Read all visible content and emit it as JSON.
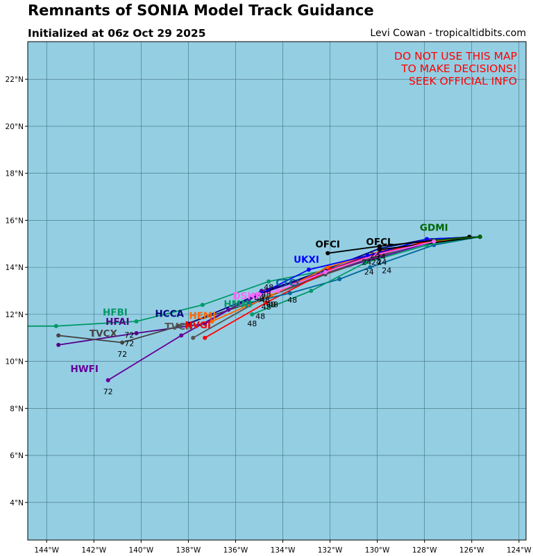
{
  "header": {
    "title": "Remnants of SONIA Model Track Guidance",
    "subtitle": "Initialized at 06z Oct 29 2025",
    "credit": "Levi Cowan - tropicaltidbits.com"
  },
  "warning": [
    "DO NOT USE THIS MAP",
    "TO MAKE DECISIONS!",
    "SEEK OFFICIAL INFO"
  ],
  "colors": {
    "ocean": "#94cee3",
    "grid": "#3f6f7a",
    "warning": "#ff0000"
  },
  "chart_data": {
    "type": "map-tracks",
    "lon_range": [
      -144.8,
      -123.7
    ],
    "lat_range": [
      2.4,
      23.6
    ],
    "lon_ticks": [
      {
        "v": -144,
        "t": "144°W"
      },
      {
        "v": -142,
        "t": "142°W"
      },
      {
        "v": -140,
        "t": "140°W"
      },
      {
        "v": -138,
        "t": "138°W"
      },
      {
        "v": -136,
        "t": "136°W"
      },
      {
        "v": -134,
        "t": "134°W"
      },
      {
        "v": -132,
        "t": "132°W"
      },
      {
        "v": -130,
        "t": "130°W"
      },
      {
        "v": -128,
        "t": "128°W"
      },
      {
        "v": -126,
        "t": "126°W"
      },
      {
        "v": -124,
        "t": "124°W"
      }
    ],
    "lat_ticks": [
      {
        "v": 4,
        "t": "4°N"
      },
      {
        "v": 6,
        "t": "6°N"
      },
      {
        "v": 8,
        "t": "8°N"
      },
      {
        "v": 10,
        "t": "10°N"
      },
      {
        "v": 12,
        "t": "12°N"
      },
      {
        "v": 14,
        "t": "14°N"
      },
      {
        "v": 16,
        "t": "16°N"
      },
      {
        "v": 18,
        "t": "18°N"
      },
      {
        "v": 20,
        "t": "20°N"
      },
      {
        "v": 22,
        "t": "22°N"
      }
    ],
    "tracks": [
      {
        "name": "HFBI",
        "color": "#009966",
        "points": [
          [
            -125.65,
            15.3
          ],
          [
            -127.8,
            15.1
          ],
          [
            -130.4,
            14.35
          ],
          [
            -132.3,
            13.85
          ],
          [
            -134.6,
            13.4
          ],
          [
            -137.4,
            12.4
          ],
          [
            -140.2,
            11.7
          ],
          [
            -143.6,
            11.5
          ],
          [
            -145.5,
            11.5
          ]
        ],
        "label": {
          "text": "HFBI",
          "lon": -141.1,
          "lat": 11.95
        }
      },
      {
        "name": "HFAI",
        "color": "#550088",
        "points": [
          [
            -125.65,
            15.3
          ],
          [
            -127.8,
            15.1
          ],
          [
            -130.4,
            14.5
          ],
          [
            -132.8,
            13.6
          ],
          [
            -134.9,
            13.0
          ],
          [
            -137.3,
            11.6
          ],
          [
            -140.2,
            11.2
          ],
          [
            -143.5,
            10.7
          ]
        ],
        "label": {
          "text": "HFAI",
          "lon": -141.0,
          "lat": 11.55
        }
      },
      {
        "name": "TVCX",
        "color": "#444444",
        "points": [
          [
            -125.65,
            15.3
          ],
          [
            -127.9,
            15.15
          ],
          [
            -130.0,
            14.45
          ],
          [
            -132.2,
            13.7
          ],
          [
            -135.0,
            12.6
          ],
          [
            -138.4,
            11.5
          ],
          [
            -140.8,
            10.8
          ],
          [
            -143.5,
            11.1
          ]
        ],
        "label": {
          "text": "TVCX",
          "lon": -141.6,
          "lat": 11.05
        }
      },
      {
        "name": "HWFI",
        "color": "#660099",
        "points": [
          [
            -125.65,
            15.3
          ],
          [
            -127.8,
            15.05
          ],
          [
            -130.0,
            14.4
          ],
          [
            -132.5,
            13.7
          ],
          [
            -134.6,
            13.0
          ],
          [
            -136.3,
            12.2
          ],
          [
            -138.3,
            11.1
          ],
          [
            -141.4,
            9.2
          ]
        ],
        "label": {
          "text": "HWFI",
          "lon": -142.4,
          "lat": 9.55
        }
      },
      {
        "name": "HCCA",
        "color": "#000080",
        "points": [
          [
            -125.65,
            15.3
          ],
          [
            -127.9,
            15.2
          ],
          [
            -129.9,
            14.8
          ],
          [
            -132.2,
            13.9
          ],
          [
            -134.9,
            12.9
          ],
          [
            -138.0,
            11.6
          ]
        ],
        "label": {
          "text": "HCCA",
          "lon": -138.8,
          "lat": 11.9
        }
      },
      {
        "name": "TVCN",
        "color": "#555555",
        "points": [
          [
            -125.65,
            15.3
          ],
          [
            -127.8,
            15.1
          ],
          [
            -130.0,
            14.5
          ],
          [
            -132.2,
            13.75
          ],
          [
            -134.8,
            12.7
          ],
          [
            -137.8,
            11.0
          ]
        ],
        "label": {
          "text": "TVCN",
          "lon": -138.4,
          "lat": 11.35
        }
      },
      {
        "name": "HEMI",
        "color": "#ff6600",
        "points": [
          [
            -125.65,
            15.3
          ],
          [
            -127.7,
            15.1
          ],
          [
            -129.8,
            14.7
          ],
          [
            -132.1,
            14.0
          ],
          [
            -134.5,
            12.8
          ],
          [
            -137.0,
            11.7
          ]
        ],
        "label": {
          "text": "HEMI",
          "lon": -137.4,
          "lat": 11.8
        }
      },
      {
        "name": "NVGI",
        "color": "#ff0000",
        "points": [
          [
            -125.65,
            15.3
          ],
          [
            -127.7,
            15.15
          ],
          [
            -129.9,
            14.6
          ],
          [
            -132.0,
            13.9
          ],
          [
            -134.7,
            12.5
          ],
          [
            -137.3,
            11.0
          ]
        ],
        "label": {
          "text": "NVGI",
          "lon": -137.6,
          "lat": 11.4
        }
      },
      {
        "name": "CTCI",
        "color": "#006699",
        "points": [
          [
            -125.65,
            15.3
          ],
          [
            -127.6,
            14.95
          ],
          [
            -130.3,
            14.0
          ],
          [
            -131.6,
            13.5
          ],
          [
            -133.7,
            12.9
          ],
          [
            -135.4,
            12.5
          ]
        ],
        "label": {
          "text": "CTCI",
          "lon": -133.8,
          "lat": 13.2
        }
      },
      {
        "name": "HMNI",
        "color": "#009966",
        "points": [
          [
            -125.65,
            15.3
          ],
          [
            -127.9,
            14.95
          ],
          [
            -130.5,
            14.2
          ],
          [
            -132.8,
            13.0
          ],
          [
            -135.3,
            12.0
          ]
        ],
        "label": {
          "text": "HMNI",
          "lon": -135.9,
          "lat": 12.3
        }
      },
      {
        "name": "UKXI",
        "color": "#0000ff",
        "points": [
          [
            -125.65,
            15.3
          ],
          [
            -127.9,
            15.2
          ],
          [
            -130.4,
            14.5
          ],
          [
            -132.9,
            13.9
          ],
          [
            -134.9,
            12.9
          ]
        ],
        "label": {
          "text": "UKXI",
          "lon": -133.0,
          "lat": 14.2
        }
      },
      {
        "name": "OFCI",
        "color": "#000000",
        "points": [
          [
            -126.1,
            15.3
          ],
          [
            -129.9,
            14.9
          ],
          [
            -132.1,
            14.6
          ]
        ],
        "label": {
          "text": "OFCI",
          "lon": -132.1,
          "lat": 14.85
        }
      },
      {
        "name": "OFCL",
        "color": "#000000",
        "points": [
          [
            -125.65,
            15.3
          ],
          [
            -129.9,
            14.75
          ]
        ],
        "label": {
          "text": "OFCL",
          "lon": -129.9,
          "lat": 14.95
        }
      },
      {
        "name": "GDMI",
        "color": "#006600",
        "points": [
          [
            -125.65,
            15.3
          ],
          [
            -127.6,
            15.15
          ]
        ],
        "label": {
          "text": "GDMI",
          "lon": -127.6,
          "lat": 15.55
        }
      },
      {
        "name": "DSHP",
        "color": "#ff66ff",
        "points": [
          [
            -127.6,
            15.1
          ],
          [
            -130.0,
            14.55
          ],
          [
            -132.2,
            13.8
          ],
          [
            -134.2,
            13.0
          ],
          [
            -135.3,
            12.8
          ]
        ],
        "label": {
          "text": "DSHP",
          "lon": -135.5,
          "lat": 12.65
        }
      }
    ],
    "hour_labels": [
      {
        "text": "24",
        "lon": -130.1,
        "lat": 14.4
      },
      {
        "text": "24",
        "lon": -129.85,
        "lat": 14.35
      },
      {
        "text": "24",
        "lon": -130.45,
        "lat": 14.1
      },
      {
        "text": "24",
        "lon": -130.05,
        "lat": 14.1
      },
      {
        "text": "24",
        "lon": -129.8,
        "lat": 14.1
      },
      {
        "text": "24",
        "lon": -130.35,
        "lat": 13.7
      },
      {
        "text": "24",
        "lon": -129.6,
        "lat": 13.75
      },
      {
        "text": "48",
        "lon": -134.6,
        "lat": 13.05
      },
      {
        "text": "48",
        "lon": -134.7,
        "lat": 12.75
      },
      {
        "text": "48",
        "lon": -134.75,
        "lat": 12.5
      },
      {
        "text": "48",
        "lon": -135.0,
        "lat": 12.55
      },
      {
        "text": "48",
        "lon": -134.5,
        "lat": 12.3
      },
      {
        "text": "48",
        "lon": -134.4,
        "lat": 12.3
      },
      {
        "text": "48",
        "lon": -134.7,
        "lat": 12.2
      },
      {
        "text": "48",
        "lon": -133.6,
        "lat": 12.5
      },
      {
        "text": "48",
        "lon": -134.95,
        "lat": 11.8
      },
      {
        "text": "48",
        "lon": -135.3,
        "lat": 11.5
      },
      {
        "text": "72",
        "lon": -140.5,
        "lat": 11.0
      },
      {
        "text": "72",
        "lon": -140.5,
        "lat": 10.65
      },
      {
        "text": "72",
        "lon": -140.8,
        "lat": 10.2
      },
      {
        "text": "72",
        "lon": -141.4,
        "lat": 8.6
      }
    ]
  }
}
